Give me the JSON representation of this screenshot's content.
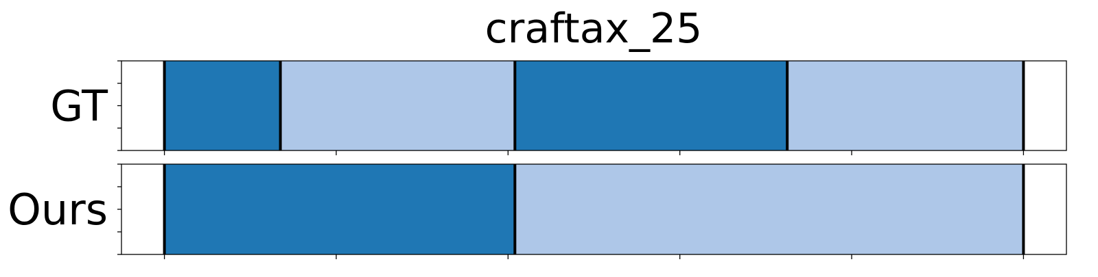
{
  "chart_data": {
    "type": "segmentation",
    "title": "craftax_25",
    "x_range": [
      -0.5,
      10.5
    ],
    "rows": [
      {
        "label": "GT",
        "segments": [
          {
            "start": 0,
            "end": 1.35,
            "color": "#1f77b4"
          },
          {
            "start": 1.35,
            "end": 4.08,
            "color": "#aec7e8"
          },
          {
            "start": 4.08,
            "end": 7.25,
            "color": "#1f77b4"
          },
          {
            "start": 7.25,
            "end": 10,
            "color": "#aec7e8"
          }
        ],
        "boundaries": [
          0,
          1.35,
          4.08,
          7.25,
          10
        ]
      },
      {
        "label": "Ours",
        "segments": [
          {
            "start": 0,
            "end": 4.08,
            "color": "#1f77b4"
          },
          {
            "start": 4.08,
            "end": 10,
            "color": "#aec7e8"
          }
        ],
        "boundaries": [
          0,
          4.08,
          10
        ]
      }
    ],
    "x_ticks": [
      0,
      2,
      4,
      6,
      8,
      10
    ],
    "y_ticks_per_row": 5,
    "grid": false,
    "legend": "none"
  }
}
